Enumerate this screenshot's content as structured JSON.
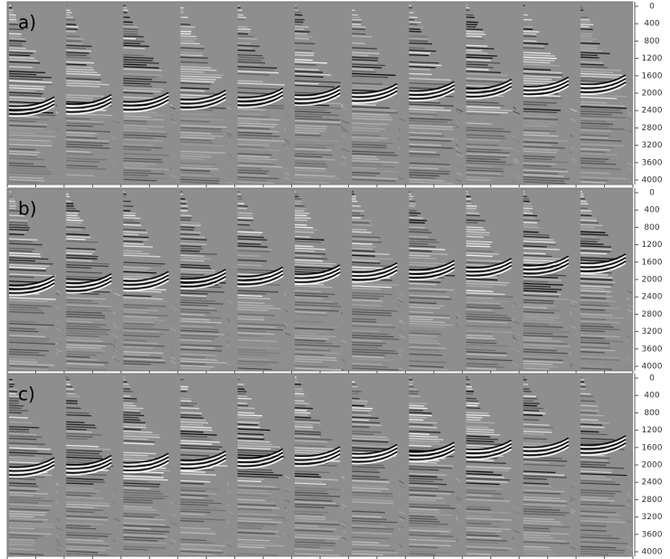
{
  "panels": [
    {
      "label": "a)",
      "yticks": [
        0,
        400,
        800,
        1200,
        1600,
        2000,
        2400,
        2800,
        3200,
        3600,
        4000
      ]
    },
    {
      "label": "b)",
      "yticks": [
        0,
        400,
        800,
        1200,
        1600,
        2000,
        2400,
        2800,
        3200,
        3600,
        4000
      ]
    },
    {
      "label": "c)",
      "yticks": [
        0,
        400,
        800,
        1200,
        1600,
        2000,
        2400,
        2800,
        3200,
        3600,
        4000
      ]
    }
  ]
}
